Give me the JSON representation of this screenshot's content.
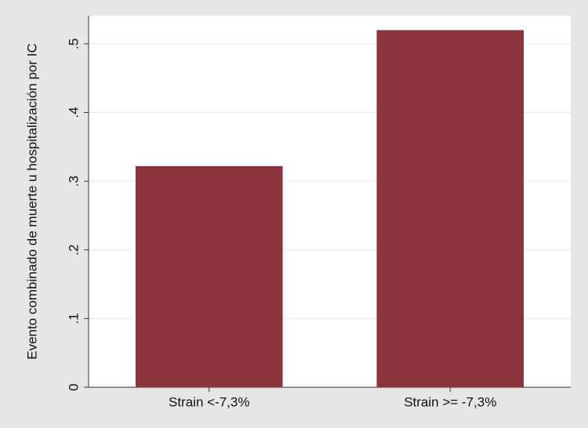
{
  "chart_data": {
    "type": "bar",
    "y_label": "Evento combinado de muerte u hospitalización por IC",
    "categories": [
      "Strain <-7,3%",
      "Strain >= -7,3%"
    ],
    "values": [
      0.322,
      0.52
    ],
    "color": "#8b343d",
    "ylim": [
      0,
      0.541
    ],
    "yticks": [
      0,
      {
        "value": 0.1,
        "label": ".1"
      },
      {
        "value": 0.2,
        "label": ".2"
      },
      {
        "value": 0.3,
        "label": ".3"
      },
      {
        "value": 0.4,
        "label": ".4"
      },
      {
        "value": 0.5,
        "label": ".5"
      }
    ],
    "grid": true
  }
}
